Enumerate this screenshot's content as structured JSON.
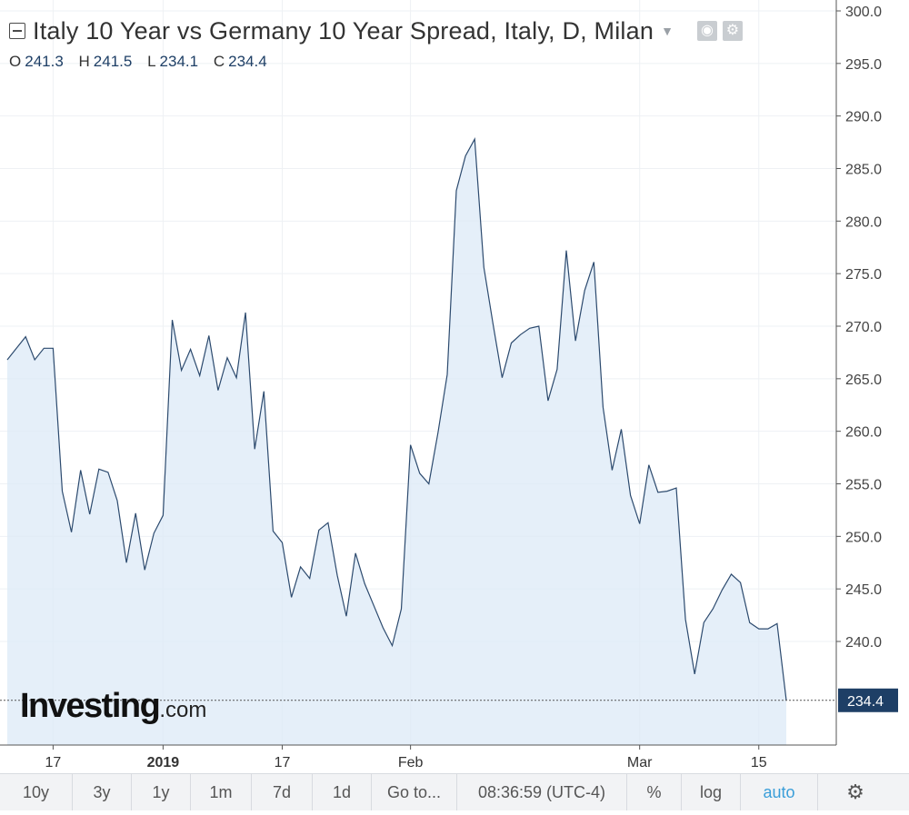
{
  "legend": {
    "title": "Italy 10 Year vs Germany 10 Year Spread, Italy, D, Milan",
    "ohlc": [
      {
        "key": "O",
        "value": "241.3"
      },
      {
        "key": "H",
        "value": "241.5"
      },
      {
        "key": "L",
        "value": "234.1"
      },
      {
        "key": "C",
        "value": "234.4"
      }
    ]
  },
  "logo": {
    "main": "Investing",
    "suffix": ".com"
  },
  "toolbar": {
    "ranges": [
      "10y",
      "3y",
      "1y",
      "1m",
      "7d",
      "1d"
    ],
    "goto_label": "Go to...",
    "time": "08:36:59 (UTC-4)",
    "percent_label": "%",
    "log_label": "log",
    "auto_label": "auto",
    "active": "auto"
  },
  "colors": {
    "line": "#2c4a6e",
    "area_fill": "#dce9f7",
    "price_tag": "#1e3f66",
    "grid": "#eef1f4",
    "active_toolbar": "#3a9ed9"
  },
  "chart_data": {
    "type": "area",
    "title": "Italy 10 Year vs Germany 10 Year Spread, Italy, D, Milan",
    "ylim": [
      231,
      301
    ],
    "y_ticks": [
      240,
      245,
      250,
      255,
      260,
      265,
      270,
      275,
      280,
      285,
      290,
      295,
      300
    ],
    "y_tick_labels": [
      "240.0",
      "245.0",
      "250.0",
      "255.0",
      "260.0",
      "265.0",
      "270.0",
      "275.0",
      "280.0",
      "285.0",
      "290.0",
      "295.0",
      "300.0"
    ],
    "x_ticks": [
      {
        "label": "17",
        "index": 5,
        "bold": false
      },
      {
        "label": "2019",
        "index": 17,
        "bold": true
      },
      {
        "label": "17",
        "index": 30,
        "bold": false
      },
      {
        "label": "Feb",
        "index": 44,
        "bold": false
      },
      {
        "label": "Mar",
        "index": 69,
        "bold": false
      },
      {
        "label": "15",
        "index": 82,
        "bold": false
      }
    ],
    "values": [
      266.8,
      267.9,
      269.0,
      266.8,
      267.9,
      267.9,
      254.3,
      250.4,
      256.3,
      252.1,
      256.4,
      256.1,
      253.4,
      247.5,
      252.2,
      246.8,
      250.3,
      252.0,
      270.6,
      265.8,
      267.8,
      265.3,
      269.1,
      263.9,
      267.0,
      265.1,
      271.3,
      258.3,
      263.8,
      250.5,
      249.4,
      244.2,
      247.1,
      246.0,
      250.6,
      251.3,
      246.3,
      242.4,
      248.4,
      245.5,
      243.4,
      241.3,
      239.6,
      243.1,
      258.7,
      256.0,
      255.0,
      259.9,
      265.4,
      282.9,
      286.2,
      287.8,
      275.6,
      270.2,
      265.1,
      268.4,
      269.2,
      269.8,
      270.0,
      262.9,
      265.9,
      277.2,
      268.6,
      273.4,
      276.1,
      262.3,
      256.3,
      260.2,
      253.9,
      251.2,
      256.8,
      254.2,
      254.3,
      254.6,
      242.1,
      236.9,
      241.8,
      243.1,
      244.9,
      246.4,
      245.6,
      241.8,
      241.2,
      241.2,
      241.7,
      234.4
    ],
    "last": {
      "value": 234.4,
      "label": "234.4"
    },
    "grid": true
  }
}
